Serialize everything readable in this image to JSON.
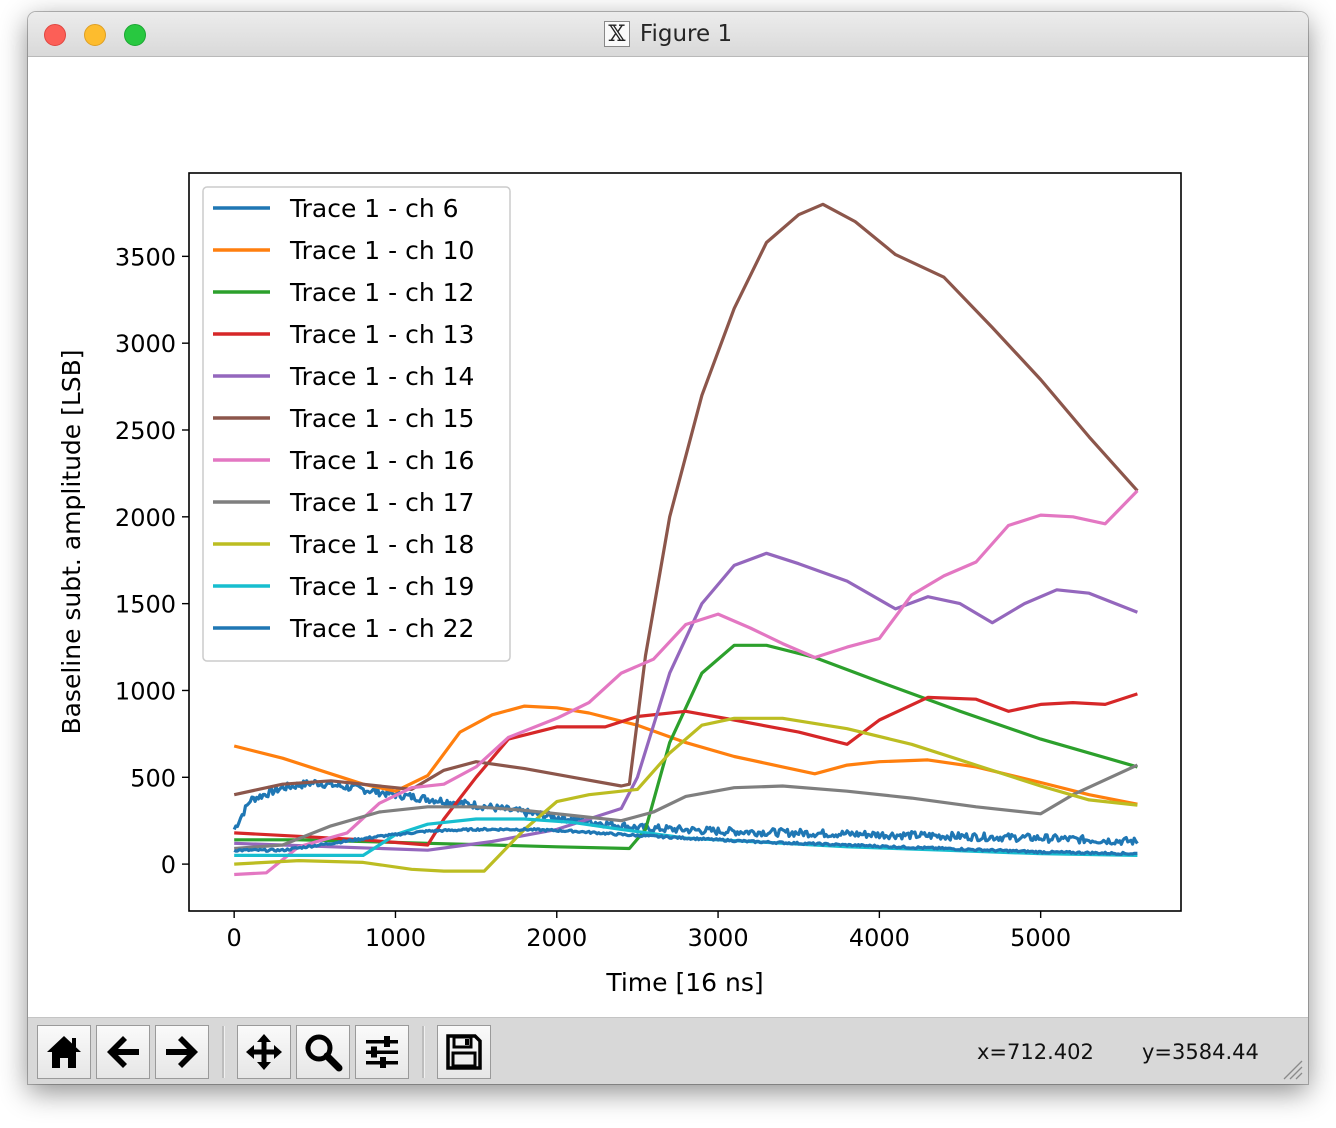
{
  "window": {
    "title": "Figure 1",
    "x_icon_glyph": "𝕏"
  },
  "chart_data": {
    "type": "line",
    "xlabel": "Time [16 ns]",
    "ylabel": "Baseline subt. amplitude [LSB]",
    "xlim": [
      -280,
      5870
    ],
    "ylim": [
      -270,
      3980
    ],
    "xticks": [
      0,
      1000,
      2000,
      3000,
      4000,
      5000
    ],
    "yticks": [
      0,
      500,
      1000,
      1500,
      2000,
      2500,
      3000,
      3500
    ],
    "legend_position": "upper left",
    "series": [
      {
        "name": "Trace 1 - ch 6",
        "color": "#1f77b4",
        "noise": 45,
        "points": [
          [
            0,
            200
          ],
          [
            100,
            370
          ],
          [
            300,
            440
          ],
          [
            500,
            470
          ],
          [
            800,
            430
          ],
          [
            1000,
            400
          ],
          [
            1500,
            340
          ],
          [
            2000,
            270
          ],
          [
            2500,
            210
          ],
          [
            3000,
            190
          ],
          [
            4000,
            170
          ],
          [
            5000,
            150
          ],
          [
            5600,
            130
          ]
        ]
      },
      {
        "name": "Trace 1 - ch 10",
        "color": "#ff7f0e",
        "points": [
          [
            0,
            680
          ],
          [
            300,
            610
          ],
          [
            600,
            520
          ],
          [
            800,
            460
          ],
          [
            1000,
            420
          ],
          [
            1200,
            510
          ],
          [
            1400,
            760
          ],
          [
            1600,
            860
          ],
          [
            1800,
            910
          ],
          [
            2000,
            900
          ],
          [
            2200,
            870
          ],
          [
            2500,
            800
          ],
          [
            2800,
            700
          ],
          [
            3100,
            620
          ],
          [
            3400,
            560
          ],
          [
            3600,
            520
          ],
          [
            3800,
            570
          ],
          [
            4000,
            590
          ],
          [
            4300,
            600
          ],
          [
            4600,
            560
          ],
          [
            5000,
            470
          ],
          [
            5300,
            400
          ],
          [
            5600,
            345
          ]
        ]
      },
      {
        "name": "Trace 1 - ch 12",
        "color": "#2ca02c",
        "points": [
          [
            0,
            140
          ],
          [
            400,
            140
          ],
          [
            800,
            130
          ],
          [
            1200,
            120
          ],
          [
            1600,
            110
          ],
          [
            2000,
            100
          ],
          [
            2450,
            90
          ],
          [
            2550,
            200
          ],
          [
            2700,
            700
          ],
          [
            2900,
            1100
          ],
          [
            3100,
            1260
          ],
          [
            3300,
            1260
          ],
          [
            3600,
            1190
          ],
          [
            4000,
            1050
          ],
          [
            4500,
            880
          ],
          [
            5000,
            720
          ],
          [
            5600,
            560
          ]
        ]
      },
      {
        "name": "Trace 1 - ch 13",
        "color": "#d62728",
        "points": [
          [
            0,
            180
          ],
          [
            400,
            160
          ],
          [
            800,
            140
          ],
          [
            1200,
            110
          ],
          [
            1300,
            260
          ],
          [
            1500,
            500
          ],
          [
            1700,
            720
          ],
          [
            2000,
            790
          ],
          [
            2300,
            790
          ],
          [
            2500,
            850
          ],
          [
            2800,
            880
          ],
          [
            3100,
            830
          ],
          [
            3500,
            760
          ],
          [
            3800,
            690
          ],
          [
            4000,
            830
          ],
          [
            4300,
            960
          ],
          [
            4600,
            950
          ],
          [
            4800,
            880
          ],
          [
            5000,
            920
          ],
          [
            5200,
            930
          ],
          [
            5400,
            920
          ],
          [
            5600,
            980
          ]
        ]
      },
      {
        "name": "Trace 1 - ch 14",
        "color": "#9467bd",
        "points": [
          [
            0,
            120
          ],
          [
            1200,
            80
          ],
          [
            1600,
            130
          ],
          [
            2000,
            200
          ],
          [
            2400,
            320
          ],
          [
            2500,
            500
          ],
          [
            2700,
            1100
          ],
          [
            2900,
            1500
          ],
          [
            3100,
            1720
          ],
          [
            3300,
            1790
          ],
          [
            3500,
            1730
          ],
          [
            3800,
            1630
          ],
          [
            4100,
            1470
          ],
          [
            4300,
            1540
          ],
          [
            4500,
            1500
          ],
          [
            4700,
            1390
          ],
          [
            4900,
            1500
          ],
          [
            5100,
            1580
          ],
          [
            5300,
            1560
          ],
          [
            5600,
            1450
          ]
        ]
      },
      {
        "name": "Trace 1 - ch 15",
        "color": "#8c564b",
        "points": [
          [
            0,
            400
          ],
          [
            300,
            460
          ],
          [
            600,
            480
          ],
          [
            900,
            450
          ],
          [
            1100,
            430
          ],
          [
            1300,
            540
          ],
          [
            1500,
            590
          ],
          [
            1800,
            550
          ],
          [
            2100,
            500
          ],
          [
            2400,
            450
          ],
          [
            2450,
            460
          ],
          [
            2550,
            1200
          ],
          [
            2700,
            2000
          ],
          [
            2900,
            2700
          ],
          [
            3100,
            3200
          ],
          [
            3300,
            3580
          ],
          [
            3500,
            3740
          ],
          [
            3650,
            3800
          ],
          [
            3850,
            3700
          ],
          [
            4100,
            3510
          ],
          [
            4400,
            3380
          ],
          [
            4700,
            3090
          ],
          [
            5000,
            2790
          ],
          [
            5300,
            2460
          ],
          [
            5600,
            2150
          ]
        ]
      },
      {
        "name": "Trace 1 - ch 16",
        "color": "#e377c2",
        "points": [
          [
            0,
            -60
          ],
          [
            200,
            -50
          ],
          [
            400,
            100
          ],
          [
            700,
            180
          ],
          [
            900,
            350
          ],
          [
            1100,
            440
          ],
          [
            1300,
            460
          ],
          [
            1500,
            560
          ],
          [
            1700,
            730
          ],
          [
            2000,
            840
          ],
          [
            2200,
            930
          ],
          [
            2400,
            1100
          ],
          [
            2600,
            1180
          ],
          [
            2800,
            1380
          ],
          [
            3000,
            1440
          ],
          [
            3200,
            1360
          ],
          [
            3400,
            1270
          ],
          [
            3600,
            1190
          ],
          [
            3800,
            1250
          ],
          [
            4000,
            1300
          ],
          [
            4200,
            1550
          ],
          [
            4400,
            1660
          ],
          [
            4600,
            1740
          ],
          [
            4800,
            1950
          ],
          [
            5000,
            2010
          ],
          [
            5200,
            2000
          ],
          [
            5400,
            1960
          ],
          [
            5600,
            2150
          ]
        ]
      },
      {
        "name": "Trace 1 - ch 17",
        "color": "#7f7f7f",
        "points": [
          [
            0,
            90
          ],
          [
            300,
            110
          ],
          [
            600,
            220
          ],
          [
            900,
            300
          ],
          [
            1200,
            330
          ],
          [
            1500,
            330
          ],
          [
            1800,
            310
          ],
          [
            2100,
            280
          ],
          [
            2400,
            250
          ],
          [
            2600,
            300
          ],
          [
            2800,
            390
          ],
          [
            3100,
            440
          ],
          [
            3400,
            450
          ],
          [
            3800,
            420
          ],
          [
            4200,
            380
          ],
          [
            4600,
            330
          ],
          [
            5000,
            290
          ],
          [
            5200,
            400
          ],
          [
            5600,
            570
          ]
        ]
      },
      {
        "name": "Trace 1 - ch 18",
        "color": "#bcbd22",
        "points": [
          [
            0,
            0
          ],
          [
            400,
            20
          ],
          [
            800,
            10
          ],
          [
            1100,
            -30
          ],
          [
            1300,
            -40
          ],
          [
            1550,
            -40
          ],
          [
            1800,
            200
          ],
          [
            2000,
            360
          ],
          [
            2200,
            400
          ],
          [
            2500,
            430
          ],
          [
            2700,
            640
          ],
          [
            2900,
            800
          ],
          [
            3100,
            840
          ],
          [
            3400,
            840
          ],
          [
            3800,
            780
          ],
          [
            4200,
            690
          ],
          [
            4600,
            570
          ],
          [
            5000,
            450
          ],
          [
            5300,
            370
          ],
          [
            5600,
            340
          ]
        ]
      },
      {
        "name": "Trace 1 - ch 19",
        "color": "#17becf",
        "points": [
          [
            0,
            50
          ],
          [
            400,
            50
          ],
          [
            800,
            50
          ],
          [
            1000,
            170
          ],
          [
            1200,
            230
          ],
          [
            1500,
            260
          ],
          [
            1800,
            260
          ],
          [
            2100,
            240
          ],
          [
            2400,
            200
          ],
          [
            2800,
            150
          ],
          [
            3200,
            130
          ],
          [
            3800,
            100
          ],
          [
            4400,
            80
          ],
          [
            5000,
            60
          ],
          [
            5600,
            50
          ]
        ]
      },
      {
        "name": "Trace 1 - ch 22",
        "color": "#1f77b4",
        "noise": 12,
        "points": [
          [
            0,
            80
          ],
          [
            300,
            80
          ],
          [
            600,
            120
          ],
          [
            900,
            160
          ],
          [
            1200,
            190
          ],
          [
            1500,
            200
          ],
          [
            1800,
            200
          ],
          [
            2100,
            190
          ],
          [
            2400,
            170
          ],
          [
            2800,
            150
          ],
          [
            3200,
            130
          ],
          [
            3800,
            110
          ],
          [
            4400,
            90
          ],
          [
            5000,
            70
          ],
          [
            5600,
            60
          ]
        ]
      }
    ]
  },
  "toolbar": {
    "buttons": [
      {
        "id": "home",
        "icon": "home-icon"
      },
      {
        "id": "back",
        "icon": "arrow-left-icon"
      },
      {
        "id": "forward",
        "icon": "arrow-right-icon"
      },
      {
        "id": "pan",
        "icon": "move-icon"
      },
      {
        "id": "zoom",
        "icon": "zoom-magnifier-icon"
      },
      {
        "id": "configure",
        "icon": "sliders-icon"
      },
      {
        "id": "save",
        "icon": "save-floppy-icon"
      }
    ],
    "x_readout": "x=712.402",
    "y_readout": "y=3584.44"
  }
}
